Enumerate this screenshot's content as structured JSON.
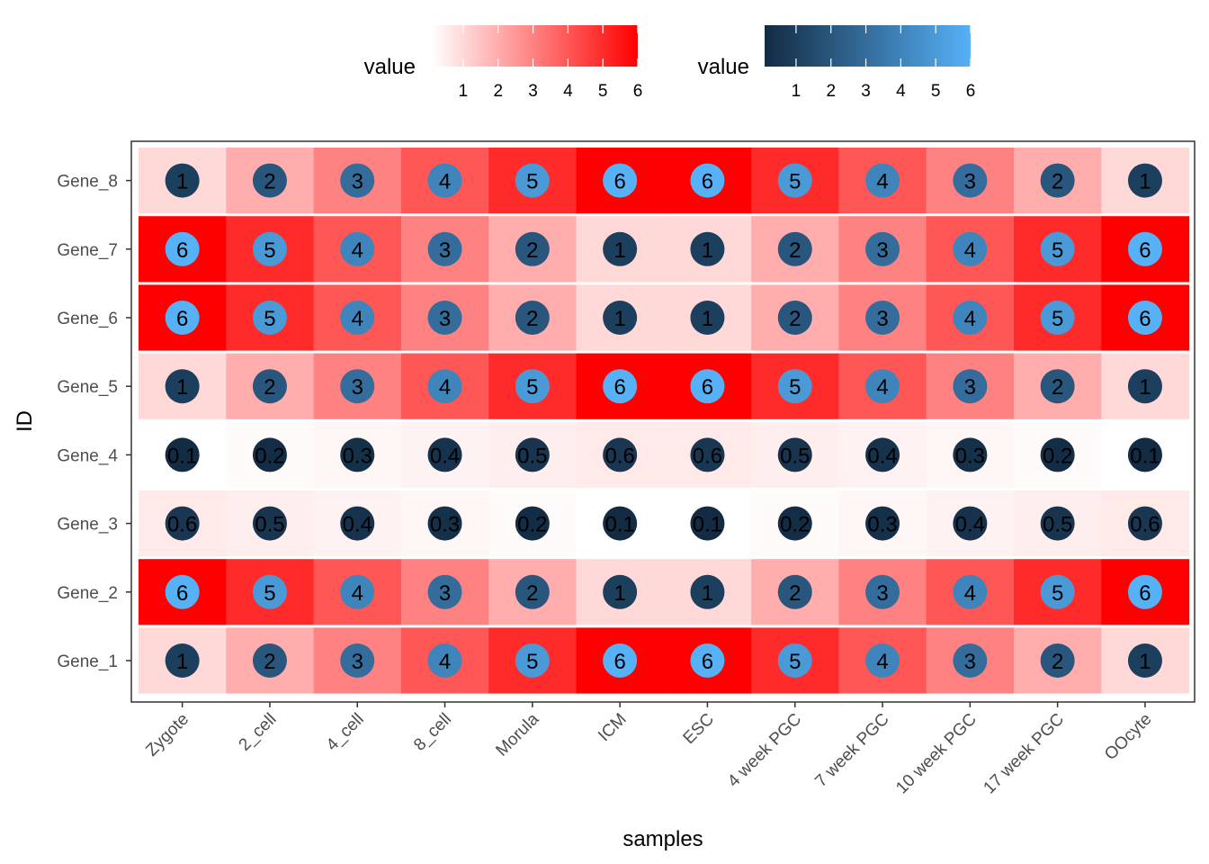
{
  "chart_data": {
    "type": "heatmap",
    "xlabel": "samples",
    "ylabel": "ID",
    "x_categories": [
      "Zygote",
      "2_cell",
      "4_cell",
      "8_cell",
      "Morula",
      "ICM",
      "ESC",
      "4 week PGC",
      "7 week PGC",
      "10 week PGC",
      "17 week PGC",
      "OOcyte"
    ],
    "y_categories": [
      "Gene_1",
      "Gene_2",
      "Gene_3",
      "Gene_4",
      "Gene_5",
      "Gene_6",
      "Gene_7",
      "Gene_8"
    ],
    "values": [
      [
        1,
        2,
        3,
        4,
        5,
        6,
        6,
        5,
        4,
        3,
        2,
        1
      ],
      [
        6,
        5,
        4,
        3,
        2,
        1,
        1,
        2,
        3,
        4,
        5,
        6
      ],
      [
        0.6,
        0.5,
        0.4,
        0.3,
        0.2,
        0.1,
        0.1,
        0.2,
        0.3,
        0.4,
        0.5,
        0.6
      ],
      [
        0.1,
        0.2,
        0.3,
        0.4,
        0.5,
        0.6,
        0.6,
        0.5,
        0.4,
        0.3,
        0.2,
        0.1
      ],
      [
        1,
        2,
        3,
        4,
        5,
        6,
        6,
        5,
        4,
        3,
        2,
        1
      ],
      [
        6,
        5,
        4,
        3,
        2,
        1,
        1,
        2,
        3,
        4,
        5,
        6
      ],
      [
        6,
        5,
        4,
        3,
        2,
        1,
        1,
        2,
        3,
        4,
        5,
        6
      ],
      [
        1,
        2,
        3,
        4,
        5,
        6,
        6,
        5,
        4,
        3,
        2,
        1
      ]
    ],
    "legends": [
      {
        "title": "value",
        "scale": "fill",
        "low_color": "#ffffff",
        "high_color": "#ff0000",
        "ticks": [
          "1",
          "2",
          "3",
          "4",
          "5",
          "6"
        ],
        "range": [
          0.1,
          6
        ]
      },
      {
        "title": "value",
        "scale": "point color",
        "low_color": "#132b43",
        "high_color": "#56b1f7",
        "ticks": [
          "1",
          "2",
          "3",
          "4",
          "5",
          "6"
        ],
        "range": [
          0.1,
          6
        ]
      }
    ],
    "legend_position": "top",
    "grid": false
  }
}
